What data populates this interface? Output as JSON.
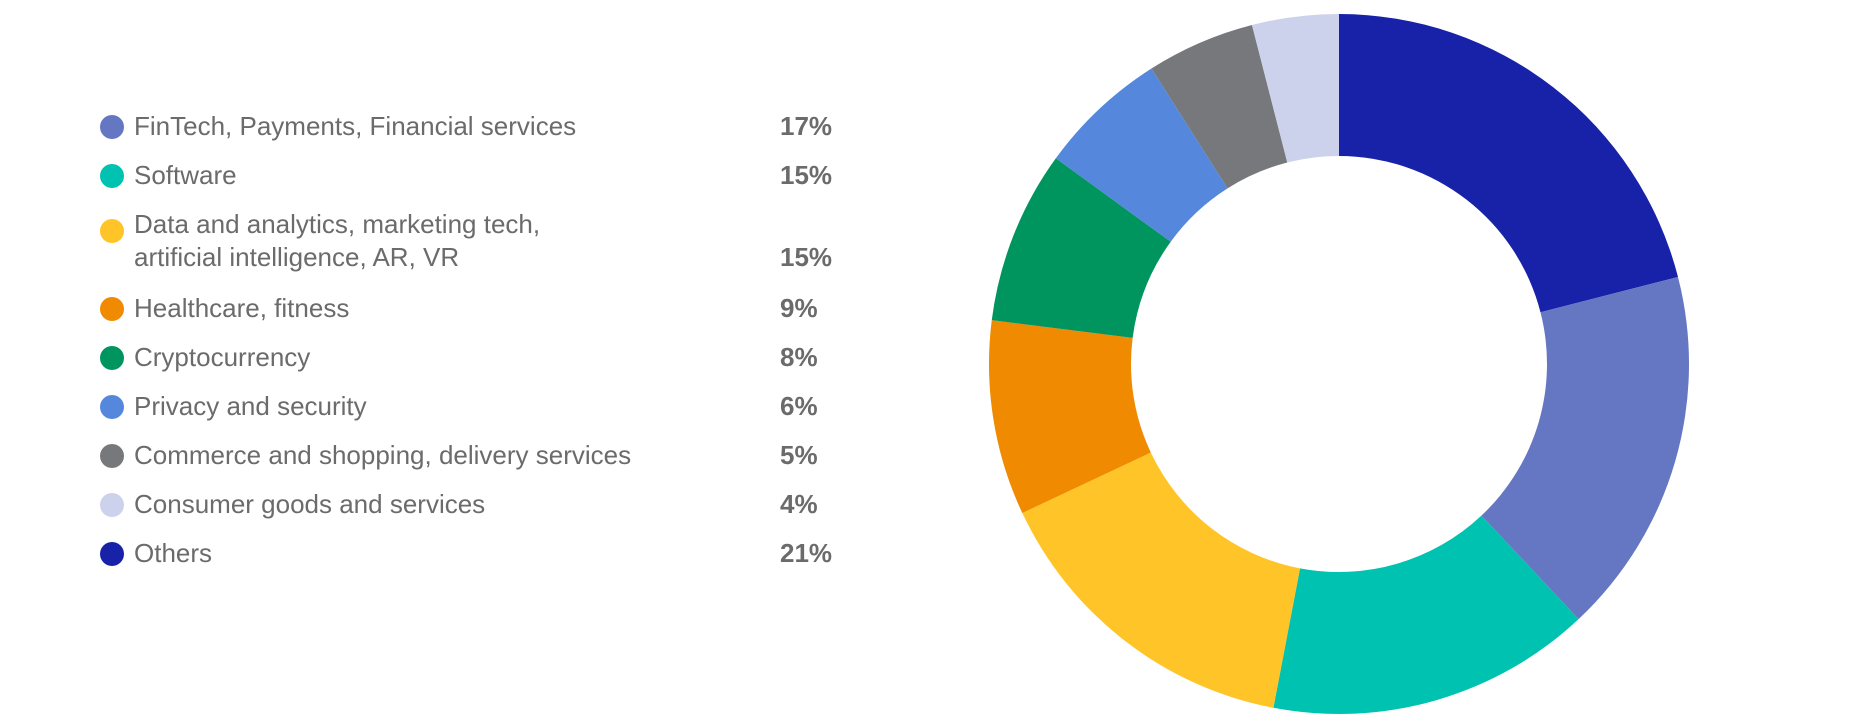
{
  "chart_data": {
    "type": "pie",
    "style": "donut",
    "legend_position": "left",
    "categories": [
      "FinTech, Payments, Financial services",
      "Software",
      "Data and analytics, marketing tech,\nartificial intelligence, AR, VR",
      "Healthcare, fitness",
      "Cryptocurrency",
      "Privacy and security",
      "Commerce and shopping, delivery services",
      "Consumer goods and services",
      "Others"
    ],
    "value_labels": [
      "17%",
      "15%",
      "15%",
      "9%",
      "8%",
      "6%",
      "5%",
      "4%",
      "21%"
    ],
    "values": [
      17,
      15,
      15,
      9,
      8,
      6,
      5,
      4,
      21
    ],
    "colors": [
      "#6577c2",
      "#00c2b0",
      "#ffc428",
      "#f08a00",
      "#00955f",
      "#5588dc",
      "#77787b",
      "#cdd2ec",
      "#1822a8"
    ],
    "slice_order": [
      8,
      0,
      1,
      2,
      3,
      4,
      5,
      6,
      7
    ]
  }
}
